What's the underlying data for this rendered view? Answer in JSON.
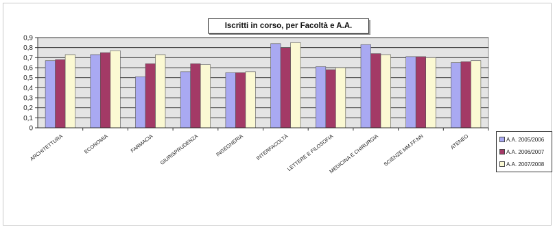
{
  "chart_data": {
    "type": "bar",
    "title": "Iscritti in corso, per Facoltà e A.A.",
    "categories": [
      "ARCHITETTURA",
      "ECONOMIA",
      "FARMACIA",
      "GIURISPRUDENZA",
      "INGEGNERIA",
      "INTERFACOLTÀ",
      "LETTERE E FILOSOFIA",
      "MEDICINA E CHIRURGIA",
      "SCIENZE MM.FF.NN",
      "ATENEO"
    ],
    "series": [
      {
        "name": "A.A. 2005/2006",
        "color": "#a9a9f2",
        "values": [
          0.67,
          0.73,
          0.51,
          0.56,
          0.55,
          0.84,
          0.61,
          0.83,
          0.71,
          0.65
        ]
      },
      {
        "name": "A.A. 2006/2007",
        "color": "#a33a66",
        "values": [
          0.68,
          0.75,
          0.64,
          0.64,
          0.55,
          0.8,
          0.58,
          0.74,
          0.71,
          0.66
        ]
      },
      {
        "name": "A.A. 2007/2008",
        "color": "#fbf9d3",
        "values": [
          0.73,
          0.77,
          0.73,
          0.63,
          0.56,
          0.85,
          0.6,
          0.73,
          0.7,
          0.67
        ]
      }
    ],
    "yticks": [
      "0",
      "0,1",
      "0,2",
      "0,3",
      "0,4",
      "0,5",
      "0,6",
      "0,7",
      "0,8",
      "0,9"
    ],
    "ylim": [
      0,
      0.9
    ],
    "grid": true,
    "legend_position": "right",
    "plot_background": "#e4e4e4"
  }
}
